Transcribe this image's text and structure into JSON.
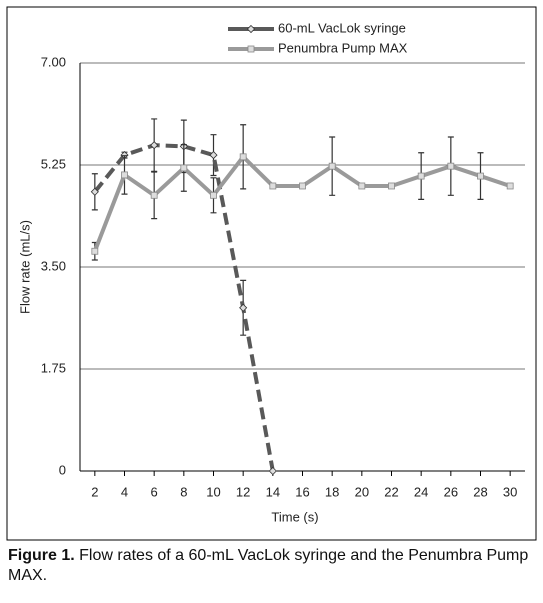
{
  "chart_data": {
    "type": "line",
    "x_label": "Time (s)",
    "y_label": "Flow rate (mL/s)",
    "x": [
      2,
      4,
      6,
      8,
      10,
      12,
      14,
      16,
      18,
      20,
      22,
      24,
      26,
      28,
      30
    ],
    "series": [
      {
        "name": "60-mL VacLok syringe",
        "color": "#595959",
        "dashed": true,
        "marker": "diamond",
        "values": [
          4.79,
          5.42,
          5.59,
          5.57,
          5.42,
          2.8,
          0,
          null,
          null,
          null,
          null,
          null,
          null,
          null,
          null
        ],
        "errors": [
          0.31,
          0.05,
          0.45,
          0.45,
          0.35,
          0.47,
          null,
          null,
          null,
          null,
          null,
          null,
          null,
          null,
          null
        ]
      },
      {
        "name": "Penumbra Pump MAX",
        "color": "#9a9a9a",
        "dashed": false,
        "marker": "square",
        "values": [
          3.77,
          5.08,
          4.73,
          5.2,
          4.73,
          5.39,
          4.89,
          4.89,
          5.23,
          4.89,
          4.89,
          5.06,
          5.23,
          5.06,
          4.89
        ],
        "errors": [
          0.15,
          0.33,
          0.4,
          0.4,
          0.3,
          0.55,
          null,
          null,
          0.5,
          null,
          null,
          0.4,
          0.5,
          0.4,
          null
        ]
      }
    ],
    "xlim": [
      1,
      31
    ],
    "xticks": [
      2,
      4,
      6,
      8,
      10,
      12,
      14,
      16,
      18,
      20,
      22,
      24,
      26,
      28,
      30
    ],
    "ylim": [
      0,
      7
    ],
    "yticks": [
      0,
      1.75,
      {
        "value": 3.5,
        "label": "3.50"
      },
      5.25,
      {
        "value": 7,
        "label": "7.00"
      }
    ],
    "grid": true,
    "legend": "top"
  },
  "caption": {
    "label": "Figure 1.",
    "text": "Flow rates of a 60-mL VacLok syringe and the Penumbra Pump MAX."
  }
}
